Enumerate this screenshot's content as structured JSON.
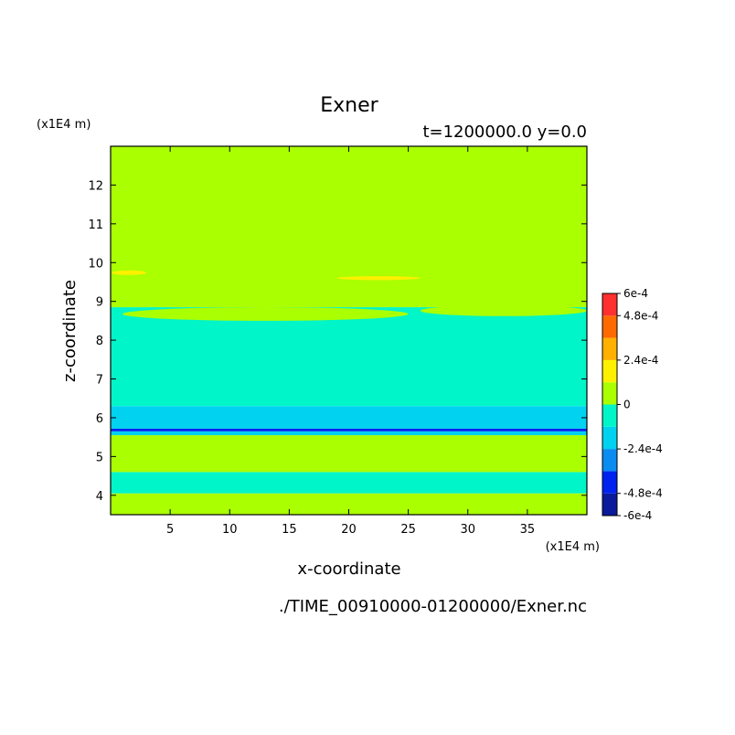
{
  "chart_data": {
    "type": "heatmap",
    "title": "Exner",
    "subtitle": "t=1200000.0 y=0.0",
    "xlabel": "x-coordinate",
    "ylabel": "z-coordinate",
    "x_unit": "(x1E4 m)",
    "y_unit": "(x1E4 m)",
    "xlim": [
      0,
      40
    ],
    "ylim": [
      3.5,
      13
    ],
    "x_ticks": [
      5,
      10,
      15,
      20,
      25,
      30,
      35
    ],
    "y_ticks": [
      4,
      5,
      6,
      7,
      8,
      9,
      10,
      11,
      12
    ],
    "footer": "./TIME_00910000-01200000/Exner.nc",
    "colorbar": {
      "levels": [
        -0.0006,
        -0.00048,
        -0.00036,
        -0.00024,
        -0.00012,
        0,
        0.00012,
        0.00024,
        0.00036,
        0.00048,
        0.0006
      ],
      "labels": [
        "6e-4",
        "4.8e-4",
        "2.4e-4",
        "0",
        "-2.4e-4",
        "-4.8e-4",
        "-6e-4"
      ],
      "colors": [
        "#0a1a9a",
        "#0022ee",
        "#0a8cf0",
        "#00d2f0",
        "#00f5c8",
        "#aaff00",
        "#fff000",
        "#ffb000",
        "#ff6a00",
        "#ff3030"
      ]
    },
    "bands": [
      {
        "z0": 3.5,
        "z1": 4.05,
        "value": 6e-05
      },
      {
        "z0": 4.05,
        "z1": 4.6,
        "value": -6e-05
      },
      {
        "z0": 4.6,
        "z1": 5.55,
        "value": 6e-05
      },
      {
        "z0": 5.55,
        "z1": 5.65,
        "value": -0.00018
      },
      {
        "z0": 5.65,
        "z1": 5.72,
        "value": -0.00042
      },
      {
        "z0": 5.72,
        "z1": 6.3,
        "value": -0.00018
      },
      {
        "z0": 6.3,
        "z1": 8.85,
        "value": -6e-05
      },
      {
        "z0": 8.85,
        "z1": 13,
        "value": 6e-05
      }
    ],
    "patches": [
      {
        "x0": 0.1,
        "x1": 3.0,
        "z0": 9.68,
        "z1": 9.8,
        "value": 0.00018
      },
      {
        "x0": 19.0,
        "x1": 26.0,
        "z0": 9.55,
        "z1": 9.65,
        "value": 0.00018
      },
      {
        "x0": 1.0,
        "x1": 25.0,
        "z0": 8.5,
        "z1": 8.85,
        "value": 6e-05
      },
      {
        "x0": 26.0,
        "x1": 40.0,
        "z0": 8.62,
        "z1": 8.9,
        "value": 6e-05
      }
    ]
  }
}
